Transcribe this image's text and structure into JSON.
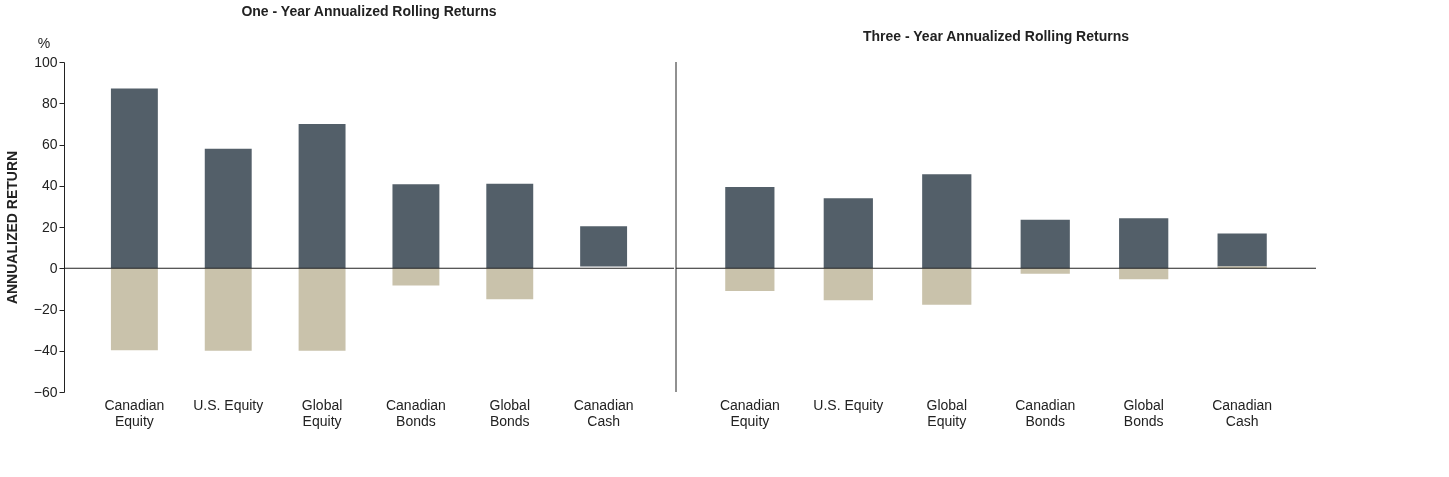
{
  "chart_data": [
    {
      "type": "bar",
      "title": "One - Year Annualized Rolling Returns",
      "ylabel": "ANNUALIZED RETURN",
      "annotations": [
        "%"
      ],
      "categories": [
        "Canadian\nEquity",
        "U.S. Equity",
        "Global\nEquity",
        "Canadian\nBonds",
        "Global\nBonds",
        "Canadian\nCash"
      ],
      "series": [
        {
          "color": "#535f69",
          "base": [
            0,
            0,
            0,
            0,
            0,
            0.9
          ],
          "values": [
            87.2,
            58,
            70,
            40.7,
            41,
            19.5
          ]
        },
        {
          "color": "#c9c2ab",
          "base": [
            0,
            0,
            0,
            0,
            0,
            null
          ],
          "values": [
            -39.8,
            -40,
            -40,
            -8.4,
            -15,
            null
          ]
        }
      ],
      "ylim": [
        -60,
        100
      ],
      "yticks": [
        -60,
        -40,
        -20,
        0,
        20,
        40,
        60,
        80,
        100
      ],
      "ref_lines": [
        {
          "axis": "y",
          "value": 0,
          "color": "#222222"
        }
      ],
      "grid": false,
      "legend": false
    },
    {
      "type": "bar",
      "title": "Three - Year Annualized Rolling Returns",
      "categories": [
        "Canadian\nEquity",
        "U.S. Equity",
        "Global\nEquity",
        "Canadian\nBonds",
        "Global\nBonds",
        "Canadian\nCash"
      ],
      "series": [
        {
          "color": "#535f69",
          "base": [
            0,
            0,
            0,
            0,
            0,
            0.9
          ],
          "values": [
            39.4,
            34,
            45.6,
            23.5,
            24.3,
            15.9
          ]
        },
        {
          "color": "#c9c2ab",
          "base": [
            0,
            0,
            0,
            0,
            0,
            0
          ],
          "values": [
            -11,
            -15.5,
            -17.7,
            -2.7,
            -5.3,
            0.9
          ]
        }
      ],
      "ylim": [
        -60,
        100
      ],
      "yticks": [
        -60,
        -40,
        -20,
        0,
        20,
        40,
        60,
        80,
        100
      ],
      "ref_lines": [
        {
          "axis": "y",
          "value": 0,
          "color": "#222222"
        }
      ],
      "tick_labels": "x",
      "grid": false,
      "legend": false
    }
  ]
}
